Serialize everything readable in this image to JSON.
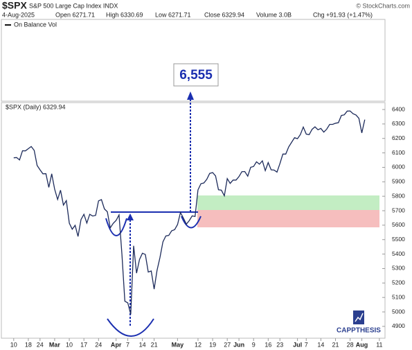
{
  "header": {
    "symbol": "$SPX",
    "name": "S&P 500 Large Cap Index INDX",
    "source": "© StockCharts.com",
    "date": "4-Aug-2025",
    "open": "Open 6271.71",
    "high": "High 6330.69",
    "low": "Low 6271.71",
    "close": "Close 6329.94",
    "volume": "Volume 3.0B",
    "change": "Chg +91.93 (+1.47%)"
  },
  "upper_panel": {
    "label": "On Balance Vol"
  },
  "chart_data": {
    "type": "line",
    "label": "$SPX (Daily) 6329.94",
    "color": "#1c2a5a",
    "x": [
      0,
      1,
      2,
      3,
      4,
      5,
      6,
      7,
      8,
      9,
      10,
      11,
      12,
      13,
      14,
      15,
      16,
      17,
      18,
      19,
      20,
      21,
      22,
      23,
      24,
      25,
      26,
      27,
      28,
      29,
      30,
      31,
      32,
      33,
      34,
      35,
      36,
      37,
      38,
      39,
      40,
      41,
      42,
      43,
      44,
      45,
      46,
      47,
      48,
      49,
      50,
      51,
      52,
      53,
      54,
      55,
      56,
      57,
      58,
      59,
      60,
      61,
      62,
      63,
      64,
      65,
      66,
      67,
      68,
      69,
      70,
      71,
      72,
      73,
      74,
      75,
      76,
      77,
      78,
      79,
      80,
      81,
      82,
      83,
      84,
      85,
      86,
      87,
      88,
      89,
      90,
      91,
      92,
      93,
      94,
      95,
      96,
      97,
      98,
      99,
      100,
      101,
      102,
      103,
      104,
      105,
      106,
      107,
      108,
      109,
      110,
      111,
      112,
      113,
      114,
      115,
      116,
      117,
      118,
      119,
      120
    ],
    "values": [
      6066,
      6068,
      6051,
      6115,
      6114,
      6129,
      6144,
      6117,
      6013,
      5983,
      5955,
      5956,
      5861,
      5955,
      5849,
      5778,
      5842,
      5739,
      5770,
      5614,
      5572,
      5599,
      5522,
      5639,
      5675,
      5615,
      5675,
      5663,
      5668,
      5768,
      5777,
      5712,
      5693,
      5581,
      5612,
      5633,
      5671,
      5397,
      5074,
      5062,
      4983,
      5457,
      5268,
      5363,
      5406,
      5397,
      5276,
      5283,
      5158,
      5288,
      5376,
      5485,
      5525,
      5529,
      5561,
      5569,
      5604,
      5687,
      5650,
      5607,
      5631,
      5664,
      5660,
      5844,
      5887,
      5892,
      5917,
      5958,
      5964,
      5941,
      5845,
      5842,
      5803,
      5922,
      5889,
      5912,
      5912,
      5936,
      5970,
      5971,
      5939,
      6000,
      6006,
      6038,
      6022,
      6045,
      5977,
      6033,
      5983,
      5981,
      5967,
      6025,
      6092,
      6092,
      6141,
      6173,
      6205,
      6198,
      6227,
      6279,
      6230,
      6226,
      6263,
      6280,
      6260,
      6269,
      6244,
      6264,
      6297,
      6297,
      6305,
      6309,
      6359,
      6363,
      6389,
      6390,
      6371,
      6362,
      6339,
      6238,
      6330
    ],
    "xlim": [
      -3.5,
      125.5
    ],
    "xticks": [
      {
        "value": 0,
        "label": "10"
      },
      {
        "value": 5,
        "label": "18"
      },
      {
        "value": 9,
        "label": "24"
      },
      {
        "value": 14,
        "label": "Mar"
      },
      {
        "value": 19,
        "label": "10"
      },
      {
        "value": 24,
        "label": "17"
      },
      {
        "value": 29,
        "label": "24"
      },
      {
        "value": 35,
        "label": "Apr"
      },
      {
        "value": 39,
        "label": "7"
      },
      {
        "value": 44,
        "label": "14"
      },
      {
        "value": 48,
        "label": "21"
      },
      {
        "value": 56,
        "label": "May"
      },
      {
        "value": 63,
        "label": "12"
      },
      {
        "value": 68,
        "label": "19"
      },
      {
        "value": 73,
        "label": "27"
      },
      {
        "value": 77,
        "label": "Jun"
      },
      {
        "value": 82,
        "label": "9"
      },
      {
        "value": 87,
        "label": "16"
      },
      {
        "value": 91,
        "label": "23"
      },
      {
        "value": 97,
        "label": "Jul"
      },
      {
        "value": 100,
        "label": "7"
      },
      {
        "value": 105,
        "label": "14"
      },
      {
        "value": 110,
        "label": "21"
      },
      {
        "value": 115,
        "label": "28"
      },
      {
        "value": 119,
        "label": "Aug"
      },
      {
        "value": 125,
        "label": "11"
      }
    ],
    "ylim": [
      4818,
      6448
    ],
    "yticks": [
      4900,
      5000,
      5100,
      5200,
      5300,
      5400,
      5500,
      5600,
      5700,
      5800,
      5900,
      6000,
      6100,
      6200,
      6300,
      6400
    ],
    "grid": false,
    "target_label": "6,555"
  },
  "logo": "CAPPTHESIS"
}
